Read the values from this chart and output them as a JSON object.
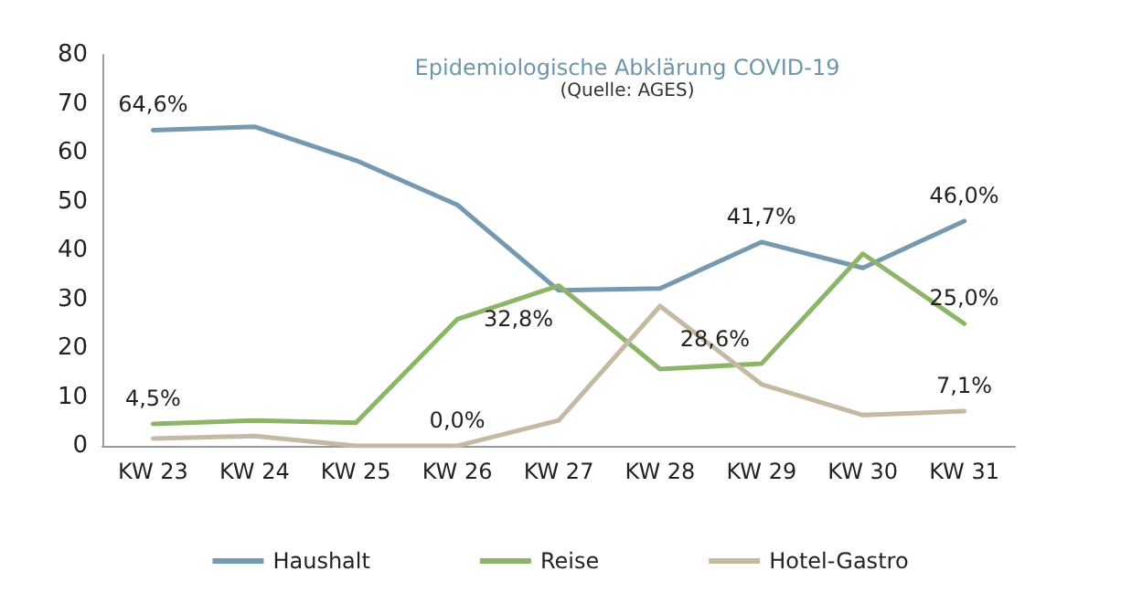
{
  "chart_data": {
    "type": "line",
    "title": "Epidemiologische Abklärung COVID-19",
    "subtitle": "(Quelle: AGES)",
    "categories": [
      "KW 23",
      "KW 24",
      "KW 25",
      "KW 26",
      "KW 27",
      "KW 28",
      "KW 29",
      "KW 30",
      "KW 31"
    ],
    "series": [
      {
        "name": "Haushalt",
        "color": "#7599b1",
        "values": [
          64.6,
          65.3,
          58.4,
          49.3,
          31.8,
          32.2,
          41.7,
          36.4,
          46.0
        ],
        "value_labels": [
          "64,6%",
          null,
          null,
          null,
          null,
          null,
          "41,7%",
          null,
          "46,0%"
        ]
      },
      {
        "name": "Reise",
        "color": "#8db56a",
        "values": [
          4.5,
          5.2,
          4.7,
          25.9,
          32.8,
          15.7,
          16.8,
          39.3,
          25.0
        ],
        "value_labels": [
          "4,5%",
          null,
          null,
          null,
          "32,8%",
          null,
          null,
          null,
          "25,0%"
        ]
      },
      {
        "name": "Hotel-Gastro",
        "color": "#c5b9a3",
        "values": [
          1.5,
          2.0,
          0.0,
          0.0,
          5.2,
          28.6,
          12.6,
          6.3,
          7.1
        ],
        "value_labels": [
          null,
          null,
          null,
          "0,0%",
          null,
          "28,6%",
          null,
          null,
          "7,1%"
        ]
      }
    ],
    "ylim": [
      0,
      80
    ],
    "yticks": [
      0,
      10,
      20,
      30,
      40,
      50,
      60,
      70,
      80
    ],
    "grid": false,
    "legend": "bottom",
    "marker": "none",
    "line_style": "solid"
  }
}
